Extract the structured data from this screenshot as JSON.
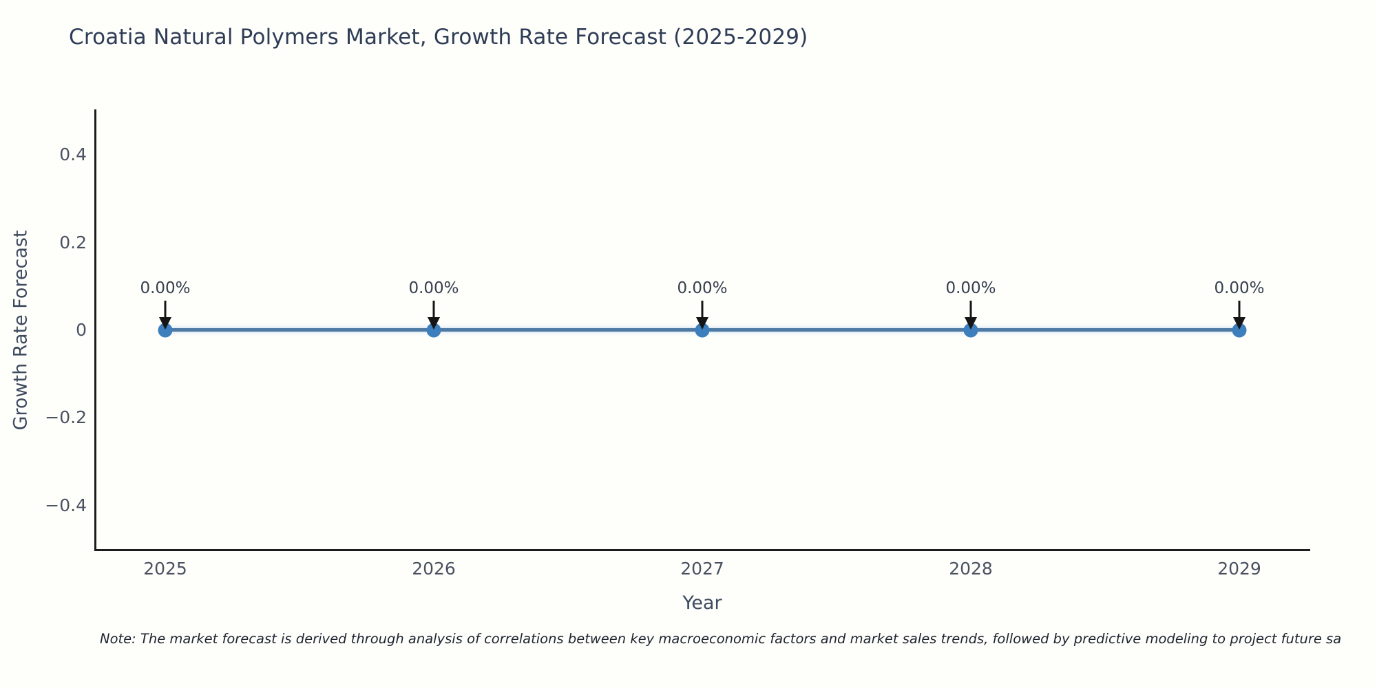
{
  "title": {
    "text": "Croatia Natural Polymers Market, Growth Rate Forecast (2025-2029)"
  },
  "chart_data": {
    "type": "line",
    "title": "Croatia Natural Polymers Market, Growth Rate Forecast (2025-2029)",
    "xlabel": "Year",
    "ylabel": "Growth Rate Forecast",
    "categories": [
      "2025",
      "2026",
      "2027",
      "2028",
      "2029"
    ],
    "series": [
      {
        "name": "Growth Rate Forecast",
        "values": [
          0,
          0,
          0,
          0,
          0
        ]
      }
    ],
    "point_labels": [
      "0.00%",
      "0.00%",
      "0.00%",
      "0.00%",
      "0.00%"
    ],
    "ytick_labels": [
      "0.4",
      "0.2",
      "0",
      "−0.2",
      "−0.4"
    ],
    "ytick_values": [
      0.4,
      0.2,
      0,
      -0.2,
      -0.4
    ],
    "ylim": [
      -0.5,
      0.5
    ],
    "grid": false,
    "legend": "none",
    "marker": "filled-circle",
    "annotation_style": "black arrow pointing down from each label to its data point",
    "colors": {
      "line": "#4e7aa3",
      "marker": "#3d7ebd",
      "arrow": "#151515",
      "axis": "#1c1c1c",
      "title_text": "#2e3c56",
      "axis_title_text": "#3e4a5e",
      "tick_text": "#4a5260",
      "annotation_text": "#353f4d",
      "background": "#fefefb"
    }
  },
  "footnote": "Note: The market forecast is derived through analysis of correlations between key macroeconomic factors and market sales trends, followed by predictive modeling to project future sa"
}
